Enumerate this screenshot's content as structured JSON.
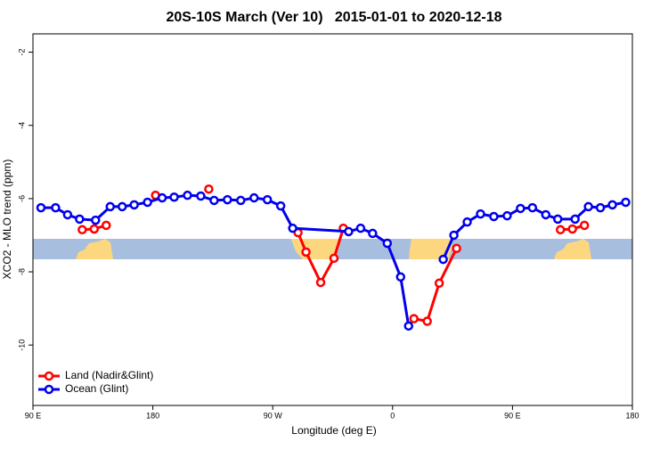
{
  "chart_data": {
    "type": "line",
    "title": "20S-10S March (Ver 10)   2015-01-01 to 2020-12-18",
    "x_label": "Longitude (deg E)",
    "y_label": "XCO2 - MLO trend (ppm)",
    "xlim": [
      90,
      540
    ],
    "ylim": [
      -11.65,
      -1.5
    ],
    "xticks": [
      {
        "value": 90,
        "label": "90 E"
      },
      180,
      {
        "value": 270,
        "label": "90 W"
      },
      {
        "value": 360,
        "label": "0"
      },
      {
        "value": 450,
        "label": "90 E"
      },
      {
        "value": 540,
        "label": "180"
      }
    ],
    "yticks": [
      -2,
      -4,
      -6,
      -8,
      -10
    ],
    "legend": "bottom-left",
    "series": [
      {
        "name": "Land (Nadir&Glint)",
        "color": "#ff0000",
        "x": [
          127,
          136,
          145,
          null,
          182,
          null,
          222,
          null,
          289,
          295,
          306,
          316,
          323,
          null,
          376,
          386,
          395,
          408,
          null,
          486,
          495,
          504
        ],
        "values": [
          -6.85,
          -6.83,
          -6.73,
          null,
          -5.91,
          null,
          -5.74,
          null,
          -6.93,
          -7.46,
          -8.29,
          -7.63,
          -6.81,
          null,
          -9.28,
          -9.35,
          -8.31,
          -7.36,
          null,
          -6.85,
          -6.83,
          -6.73
        ]
      },
      {
        "name": "Ocean (Glint)",
        "color": "#0000ee",
        "x": [
          96,
          107,
          116,
          125,
          137,
          148,
          157,
          166,
          176,
          187,
          196,
          206,
          216,
          226,
          236,
          246,
          256,
          266,
          276,
          285,
          327,
          336,
          345,
          356,
          366,
          372,
          null,
          398,
          406,
          416,
          426,
          436,
          446,
          456,
          465,
          475,
          484,
          497,
          507,
          516,
          525,
          535
        ],
        "values": [
          -6.25,
          -6.25,
          -6.44,
          -6.56,
          -6.59,
          -6.22,
          -6.22,
          -6.17,
          -6.1,
          -5.98,
          -5.96,
          -5.91,
          -5.93,
          -6.05,
          -6.03,
          -6.05,
          -5.98,
          -6.03,
          -6.2,
          -6.81,
          -6.9,
          -6.81,
          -6.95,
          -7.22,
          -8.14,
          -9.48,
          null,
          -7.66,
          -7.0,
          -6.64,
          -6.42,
          -6.49,
          -6.47,
          -6.27,
          -6.25,
          -6.44,
          -6.56,
          -6.56,
          -6.22,
          -6.25,
          -6.17,
          -6.1
        ]
      }
    ]
  }
}
